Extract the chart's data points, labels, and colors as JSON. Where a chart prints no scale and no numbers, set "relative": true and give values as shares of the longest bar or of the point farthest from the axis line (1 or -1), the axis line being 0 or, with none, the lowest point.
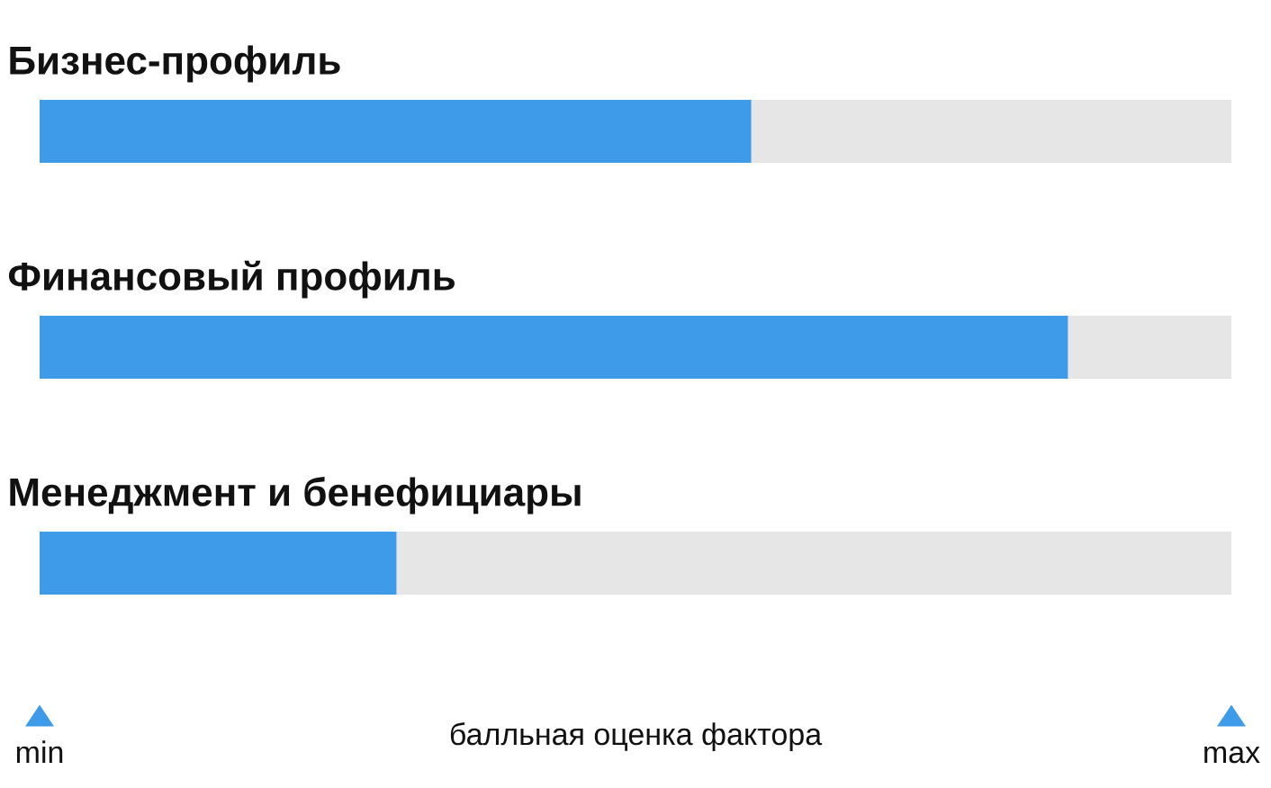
{
  "chart_data": {
    "type": "bar",
    "orientation": "horizontal",
    "relative": true,
    "categories": [
      "Бизнес-профиль",
      "Финансовый профиль",
      "Менеджмент и бенефициары"
    ],
    "values": [
      0.692,
      1,
      0.347
    ],
    "color": "#3d9be9",
    "xlabel": "балльная оценка фактора",
    "annotations": [
      "min",
      "max"
    ]
  }
}
